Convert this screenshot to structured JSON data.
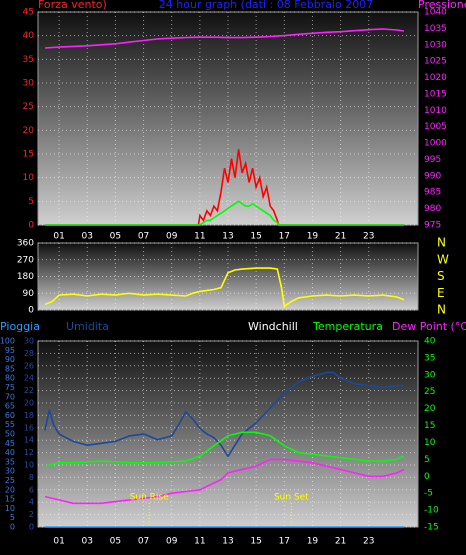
{
  "chart_data": [
    {
      "type": "line",
      "ylabel": "Forza vento)",
      "title": "24 hour graph (dati : 08 Febbraio 2007",
      "y2label": "Pressione",
      "title_color": "#2020ff",
      "ytick_color": "#ff2020",
      "y2tick_color": "#ff20ff",
      "xlim": [
        -0.5,
        26.5
      ],
      "xticks": [
        {
          "value": 1,
          "label": "01"
        },
        {
          "value": 3,
          "label": "03"
        },
        {
          "value": 5,
          "label": "05"
        },
        {
          "value": 7,
          "label": "07"
        },
        {
          "value": 9,
          "label": "09"
        },
        {
          "value": 11,
          "label": "11"
        },
        {
          "value": 13,
          "label": "13"
        },
        {
          "value": 15,
          "label": "15"
        },
        {
          "value": 17,
          "label": "17"
        },
        {
          "value": 19,
          "label": "19"
        },
        {
          "value": 21,
          "label": "21"
        },
        {
          "value": 23,
          "label": "23"
        }
      ],
      "show_xtick_labels": true,
      "ylim": [
        0,
        45
      ],
      "yticks": [
        0,
        5,
        10,
        15,
        20,
        25,
        30,
        35,
        40,
        45
      ],
      "y2lim": [
        975,
        1040
      ],
      "y2ticks": [
        975,
        980,
        985,
        990,
        995,
        1000,
        1005,
        1010,
        1015,
        1020,
        1025,
        1030,
        1035,
        1040
      ],
      "grid": true,
      "grid_axis": "y",
      "series": [
        {
          "color": "#ff20ff",
          "axis": "y2",
          "x": [
            0,
            1,
            2,
            3,
            4,
            5,
            6,
            7,
            8,
            9,
            10,
            11,
            12,
            13,
            14,
            15,
            16,
            17,
            18,
            19,
            20,
            21,
            22,
            23,
            24,
            25,
            25.5
          ],
          "values": [
            1029,
            1029.3,
            1029.5,
            1029.7,
            1030,
            1030.3,
            1030.8,
            1031.3,
            1031.8,
            1032,
            1032.2,
            1032.3,
            1032.3,
            1032.2,
            1032.2,
            1032.3,
            1032.5,
            1032.8,
            1033.2,
            1033.5,
            1033.8,
            1034,
            1034.3,
            1034.6,
            1034.8,
            1034.5,
            1034.2
          ]
        },
        {
          "color": "#ff0000",
          "axis": "y",
          "x": [
            0,
            10.9,
            11,
            11.25,
            11.5,
            11.75,
            12,
            12.25,
            12.5,
            12.75,
            13,
            13.25,
            13.5,
            13.75,
            14,
            14.25,
            14.5,
            14.75,
            15,
            15.25,
            15.5,
            15.75,
            16,
            16.25,
            16.5,
            16.6,
            25.5
          ],
          "values": [
            0,
            0,
            2,
            1,
            3,
            2,
            4,
            3,
            7,
            12,
            9,
            14,
            10,
            16,
            11,
            13,
            9,
            12,
            8,
            10,
            6,
            8,
            4,
            3,
            1,
            0,
            0
          ]
        },
        {
          "color": "#00ff00",
          "axis": "y",
          "x": [
            0,
            10.9,
            11,
            11.25,
            11.5,
            11.75,
            12,
            12.25,
            12.5,
            12.75,
            13,
            13.25,
            13.5,
            13.75,
            14,
            14.25,
            14.5,
            14.75,
            15,
            15.25,
            15.5,
            15.75,
            16,
            16.25,
            16.5,
            16.6,
            25.5
          ],
          "values": [
            0,
            0,
            0,
            0.5,
            1,
            1,
            1.5,
            2,
            2.5,
            3,
            3.5,
            4,
            4.5,
            5,
            4.5,
            4,
            4,
            4.5,
            4,
            3.5,
            3,
            2.5,
            2,
            1,
            0.5,
            0,
            0
          ]
        }
      ]
    },
    {
      "type": "line",
      "ytick_color": "#ffffff",
      "y2tick_color": "#ffff00",
      "xlim": [
        -0.5,
        26.5
      ],
      "xticks": [
        1,
        3,
        5,
        7,
        9,
        11,
        13,
        15,
        17,
        19,
        21,
        23
      ],
      "show_xtick_labels": false,
      "ylim": [
        0,
        360
      ],
      "yticks": [
        0,
        90,
        180,
        270,
        360
      ],
      "y2lim": [
        0,
        360
      ],
      "y2ticks": [
        {
          "value": 360,
          "label": "N"
        },
        {
          "value": 270,
          "label": "W"
        },
        {
          "value": 180,
          "label": "S"
        },
        {
          "value": 90,
          "label": "E"
        },
        {
          "value": 0,
          "label": "N"
        }
      ],
      "grid": true,
      "grid_axis": "y",
      "series": [
        {
          "color": "#ffff00",
          "axis": "y",
          "x": [
            0,
            0.5,
            1,
            2,
            3,
            4,
            5,
            6,
            7,
            8,
            9,
            10,
            10.5,
            11,
            12,
            12.5,
            13,
            13.5,
            14,
            15,
            16,
            16.5,
            16.8,
            17,
            17.5,
            18,
            19,
            20,
            21,
            22,
            23,
            24,
            25,
            25.5
          ],
          "values": [
            30,
            45,
            80,
            85,
            75,
            85,
            80,
            90,
            80,
            85,
            80,
            75,
            90,
            100,
            110,
            120,
            200,
            215,
            220,
            225,
            225,
            220,
            120,
            20,
            45,
            65,
            75,
            80,
            75,
            80,
            75,
            80,
            70,
            55
          ]
        }
      ]
    },
    {
      "type": "line",
      "ytick_color": "#3a78e0",
      "y3tick_color": "#2848a8",
      "y2tick_color": "#00ff00",
      "xlim": [
        -0.5,
        26.5
      ],
      "xticks": [
        {
          "value": 1,
          "label": "01"
        },
        {
          "value": 3,
          "label": "03"
        },
        {
          "value": 5,
          "label": "05"
        },
        {
          "value": 7,
          "label": "07"
        },
        {
          "value": 9,
          "label": "09"
        },
        {
          "value": 11,
          "label": "11"
        },
        {
          "value": 13,
          "label": "13"
        },
        {
          "value": 15,
          "label": "15"
        },
        {
          "value": 17,
          "label": "17"
        },
        {
          "value": 19,
          "label": "19"
        },
        {
          "value": 21,
          "label": "21"
        },
        {
          "value": 23,
          "label": "23"
        }
      ],
      "show_xtick_labels": true,
      "ylim": [
        0,
        100
      ],
      "yticks": [
        0,
        5,
        10,
        15,
        20,
        25,
        30,
        35,
        40,
        45,
        50,
        55,
        60,
        65,
        70,
        75,
        80,
        85,
        90,
        95,
        100
      ],
      "y3lim": [
        0,
        30
      ],
      "y3ticks": [
        0,
        2,
        4,
        6,
        8,
        10,
        12,
        14,
        16,
        18,
        20,
        22,
        24,
        26,
        28,
        30
      ],
      "y2lim": [
        -15,
        40
      ],
      "y2ticks": [
        -15,
        -10,
        -5,
        0,
        5,
        10,
        15,
        20,
        25,
        30,
        35,
        40
      ],
      "grid": true,
      "grid_axis": "y3",
      "series": [
        {
          "name": "Pioggia",
          "color": "#20a0ff",
          "axis": "y3",
          "x": [
            0,
            25.5
          ],
          "values": [
            0,
            0
          ]
        },
        {
          "name": "Umidita",
          "color": "#1a4a9a",
          "axis": "y",
          "x": [
            0,
            0.3,
            0.6,
            1,
            2,
            3,
            4,
            5,
            6,
            7,
            8,
            9,
            9.5,
            10,
            10.5,
            11,
            11.5,
            12,
            12.5,
            13,
            13.5,
            14,
            15,
            16,
            17,
            18,
            19,
            20,
            20.5,
            21,
            22,
            23,
            24,
            25,
            25.5
          ],
          "values": [
            52,
            63,
            55,
            50,
            46,
            44,
            45,
            46,
            49,
            50,
            47,
            49,
            55,
            62,
            58,
            53,
            50,
            48,
            44,
            38,
            44,
            50,
            56,
            64,
            72,
            78,
            81,
            83,
            83,
            80,
            77,
            76,
            75,
            76,
            76
          ]
        },
        {
          "name": "Windchill",
          "color": "#ffffff",
          "axis": "y2",
          "x": [],
          "values": []
        },
        {
          "name": "Temperatura",
          "color": "#00ff00",
          "axis": "y2",
          "x": [
            0,
            1,
            2,
            4,
            6,
            8,
            10,
            11,
            12,
            13,
            14,
            15,
            16,
            17,
            18,
            19,
            20,
            21,
            22,
            23,
            24,
            25,
            25.5
          ],
          "values": [
            3,
            4,
            4,
            4.5,
            4,
            4,
            4.5,
            6,
            9,
            12,
            13,
            13,
            12,
            9,
            7,
            6.5,
            6,
            5.5,
            5,
            4.5,
            4.5,
            5,
            6
          ]
        },
        {
          "name": "Dew Point (°C)",
          "color": "#ff20ff",
          "axis": "y2",
          "x": [
            0,
            1,
            2,
            3,
            4,
            5,
            6,
            7,
            8,
            9,
            10,
            11,
            12,
            12.5,
            13,
            14,
            15,
            16,
            17,
            18,
            19,
            20,
            21,
            22,
            23,
            24,
            25,
            25.5
          ],
          "values": [
            -6,
            -7,
            -8,
            -8,
            -8,
            -7.5,
            -7,
            -6.5,
            -6,
            -5,
            -4.5,
            -4,
            -2,
            -1,
            1,
            2,
            3,
            5,
            5,
            4.5,
            4,
            3,
            2,
            1,
            0,
            0,
            1,
            2
          ]
        }
      ],
      "annotations": [
        {
          "text": "Sun Rise",
          "x": 7.4,
          "color": "#ffff00"
        },
        {
          "text": "Sun Set",
          "x": 17.5,
          "color": "#ffff00"
        }
      ]
    }
  ]
}
